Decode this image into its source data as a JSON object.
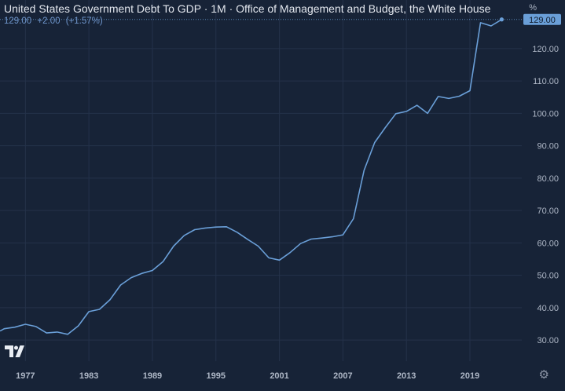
{
  "header": {
    "title": "United States Government Debt To GDP · 1M · Office of Management and Budget, the White House",
    "last_value": "129.00",
    "change": "+2.00",
    "change_pct": "(+1.57%)"
  },
  "unit": "%",
  "price_tag": "129.00",
  "colors": {
    "background": "#172337",
    "line": "#6a9fd8",
    "grid": "#24324a",
    "axis_text": "#aeb7c6",
    "tag_bg": "#6a9fd8",
    "tag_text": "#0f1a2a"
  },
  "icons": {
    "logo": "tradingview-logo-icon",
    "settings": "gear-icon"
  },
  "chart_data": {
    "type": "line",
    "title": "United States Government Debt To GDP",
    "xlabel": "",
    "ylabel": "%",
    "ylim": [
      23.5,
      135
    ],
    "xlim": [
      1974.6,
      2023.9
    ],
    "grid": true,
    "y_ticks": [
      30,
      40,
      50,
      60,
      70,
      80,
      90,
      100,
      110,
      120
    ],
    "y_tick_labels": [
      "30.00",
      "40.00",
      "50.00",
      "60.00",
      "70.00",
      "80.00",
      "90.00",
      "100.00",
      "110.00",
      "120.00"
    ],
    "x_ticks": [
      1977,
      1983,
      1989,
      1995,
      2001,
      2007,
      2013,
      2019
    ],
    "x_tick_labels": [
      "1977",
      "1983",
      "1989",
      "1995",
      "2001",
      "2007",
      "2013",
      "2019"
    ],
    "series": [
      {
        "x": [
          1974.6,
          1975,
          1976,
          1977,
          1978,
          1979,
          1980,
          1981,
          1982,
          1983,
          1984,
          1985,
          1986,
          1987,
          1988,
          1989,
          1990,
          1991,
          1992,
          1993,
          1994,
          1995,
          1996,
          1997,
          1998,
          1999,
          2000,
          2001,
          2002,
          2003,
          2004,
          2005,
          2006,
          2007,
          2008,
          2009,
          2010,
          2011,
          2012,
          2013,
          2014,
          2015,
          2016,
          2017,
          2018,
          2019,
          2020,
          2021,
          2022
        ],
        "values": [
          32.8,
          33.5,
          34.0,
          34.9,
          34.2,
          32.2,
          32.5,
          31.8,
          34.4,
          38.8,
          39.5,
          42.5,
          47.0,
          49.3,
          50.6,
          51.5,
          54.2,
          59.0,
          62.3,
          64.1,
          64.6,
          64.9,
          65.0,
          63.3,
          61.1,
          59.0,
          55.4,
          54.7,
          57.0,
          59.8,
          61.2,
          61.5,
          61.9,
          62.5,
          67.5,
          82.4,
          91.0,
          95.6,
          99.9,
          100.6,
          102.5,
          100.0,
          105.2,
          104.6,
          105.3,
          107.0,
          128.0,
          127.0,
          129.0
        ]
      }
    ]
  }
}
